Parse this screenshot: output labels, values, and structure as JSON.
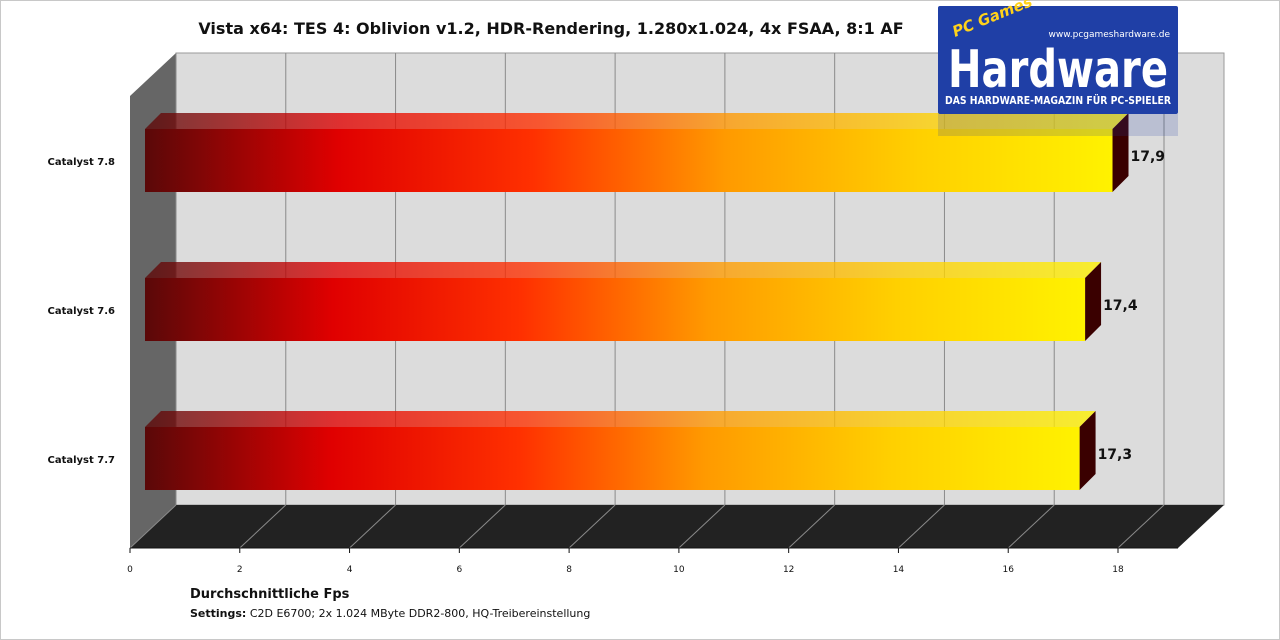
{
  "chart_data": {
    "type": "bar",
    "orientation": "horizontal",
    "title": "Vista x64: TES 4: Oblivion v1.2, HDR-Rendering, 1.280x1.024,  4x FSAA, 8:1 AF",
    "categories": [
      "Catalyst 7.8",
      "Catalyst 7.6",
      "Catalyst 7.7"
    ],
    "values": [
      17.9,
      17.4,
      17.3
    ],
    "value_labels": [
      "17,9",
      "17,4",
      "17,3"
    ],
    "xlabel": "Durchschnittliche  Fps",
    "xlim": [
      0,
      18
    ],
    "xticks": [
      "0",
      "2",
      "4",
      "6",
      "8",
      "10",
      "12",
      "14",
      "16",
      "18"
    ],
    "grid": true,
    "legend": "none",
    "bar_gradient": [
      "#5a0808",
      "#e00000",
      "#ff3000",
      "#ff9a00",
      "#ffd000",
      "#fff200"
    ],
    "wall_color": "#dcdcdc",
    "floor_color": "#222222",
    "side_wall_color": "#666666"
  },
  "settings_note": {
    "label": "Settings:",
    "text": " C2D E6700; 2x 1.024 MByte DDR2-800, HQ-Treibereinstellung"
  },
  "logo": {
    "url_text": "www.pcgameshardware.de",
    "pc_games": "PC Games",
    "brand": "Hardware",
    "tagline": "DAS HARDWARE-MAGAZIN FÜR PC-SPIELER",
    "background": "#1f3fa6"
  }
}
